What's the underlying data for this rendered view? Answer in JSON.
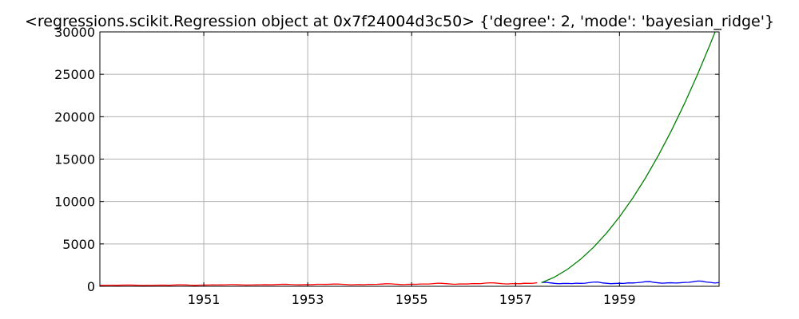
{
  "chart_data": {
    "type": "line",
    "title": "<regressions.scikit.Regression object at 0x7f24004d3c50> {'degree': 2, 'mode': 'bayesian_ridge'}",
    "xlabel": "",
    "ylabel": "",
    "xlim": [
      1949.0,
      1960.9167
    ],
    "ylim": [
      0,
      30000
    ],
    "x_ticks": [
      1951,
      1953,
      1955,
      1957,
      1959
    ],
    "x_tick_labels": [
      "1951",
      "1953",
      "1955",
      "1957",
      "1959"
    ],
    "y_ticks": [
      0,
      5000,
      10000,
      15000,
      20000,
      25000,
      30000
    ],
    "y_tick_labels": [
      "0",
      "5000",
      "10000",
      "15000",
      "20000",
      "25000",
      "30000"
    ],
    "grid": true,
    "legend": "none",
    "series": [
      {
        "color": "#ff0000",
        "x": [
          1949.0,
          1949.0833,
          1949.1667,
          1949.25,
          1949.3333,
          1949.4167,
          1949.5,
          1949.5833,
          1949.6667,
          1949.75,
          1949.8333,
          1949.9167,
          1950.0,
          1950.0833,
          1950.1667,
          1950.25,
          1950.3333,
          1950.4167,
          1950.5,
          1950.5833,
          1950.6667,
          1950.75,
          1950.8333,
          1950.9167,
          1951.0,
          1951.0833,
          1951.1667,
          1951.25,
          1951.3333,
          1951.4167,
          1951.5,
          1951.5833,
          1951.6667,
          1951.75,
          1951.8333,
          1951.9167,
          1952.0,
          1952.0833,
          1952.1667,
          1952.25,
          1952.3333,
          1952.4167,
          1952.5,
          1952.5833,
          1952.6667,
          1952.75,
          1952.8333,
          1952.9167,
          1953.0,
          1953.0833,
          1953.1667,
          1953.25,
          1953.3333,
          1953.4167,
          1953.5,
          1953.5833,
          1953.6667,
          1953.75,
          1953.8333,
          1953.9167,
          1954.0,
          1954.0833,
          1954.1667,
          1954.25,
          1954.3333,
          1954.4167,
          1954.5,
          1954.5833,
          1954.6667,
          1954.75,
          1954.8333,
          1954.9167,
          1955.0,
          1955.0833,
          1955.1667,
          1955.25,
          1955.3333,
          1955.4167,
          1955.5,
          1955.5833,
          1955.6667,
          1955.75,
          1955.8333,
          1955.9167,
          1956.0,
          1956.0833,
          1956.1667,
          1956.25,
          1956.3333,
          1956.4167,
          1956.5,
          1956.5833,
          1956.6667,
          1956.75,
          1956.8333,
          1956.9167,
          1957.0,
          1957.0833,
          1957.1667,
          1957.25,
          1957.3333,
          1957.4167
        ],
        "y": [
          112,
          118,
          132,
          129,
          121,
          135,
          148,
          148,
          136,
          119,
          104,
          118,
          115,
          126,
          141,
          135,
          125,
          149,
          170,
          170,
          158,
          133,
          114,
          140,
          145,
          150,
          178,
          163,
          172,
          178,
          199,
          199,
          184,
          162,
          146,
          166,
          171,
          180,
          193,
          181,
          183,
          218,
          230,
          242,
          209,
          191,
          172,
          194,
          196,
          196,
          236,
          235,
          229,
          243,
          264,
          272,
          237,
          211,
          180,
          201,
          204,
          188,
          235,
          227,
          234,
          264,
          302,
          293,
          259,
          229,
          203,
          229,
          242,
          233,
          267,
          269,
          270,
          315,
          364,
          347,
          312,
          274,
          237,
          278,
          284,
          277,
          317,
          313,
          318,
          374,
          413,
          405,
          355,
          306,
          271,
          306,
          315,
          301,
          356,
          348,
          355,
          422
        ]
      },
      {
        "color": "#0000ff",
        "x": [
          1957.5,
          1957.5833,
          1957.6667,
          1957.75,
          1957.8333,
          1957.9167,
          1958.0,
          1958.0833,
          1958.1667,
          1958.25,
          1958.3333,
          1958.4167,
          1958.5,
          1958.5833,
          1958.6667,
          1958.75,
          1958.8333,
          1958.9167,
          1959.0,
          1959.0833,
          1959.1667,
          1959.25,
          1959.3333,
          1959.4167,
          1959.5,
          1959.5833,
          1959.6667,
          1959.75,
          1959.8333,
          1959.9167,
          1960.0,
          1960.0833,
          1960.1667,
          1960.25,
          1960.3333,
          1960.4167,
          1960.5,
          1960.5833,
          1960.6667,
          1960.75,
          1960.8333,
          1960.9167
        ],
        "y": [
          465,
          467,
          404,
          347,
          305,
          336,
          340,
          318,
          362,
          348,
          363,
          435,
          491,
          505,
          404,
          359,
          310,
          337,
          360,
          342,
          406,
          396,
          420,
          472,
          548,
          559,
          463,
          407,
          362,
          405,
          417,
          391,
          419,
          461,
          472,
          535,
          622,
          606,
          508,
          461,
          390,
          432
        ]
      },
      {
        "color": "#008000",
        "x": [
          1957.5,
          1957.75,
          1958.0,
          1958.25,
          1958.5,
          1958.75,
          1959.0,
          1959.25,
          1959.5,
          1959.75,
          1960.0,
          1960.25,
          1960.5,
          1960.75,
          1960.9167
        ],
        "y": [
          420,
          1090,
          2010,
          3180,
          4600,
          6270,
          8190,
          10360,
          12780,
          15450,
          18370,
          21540,
          24960,
          28630,
          31190
        ]
      }
    ]
  }
}
